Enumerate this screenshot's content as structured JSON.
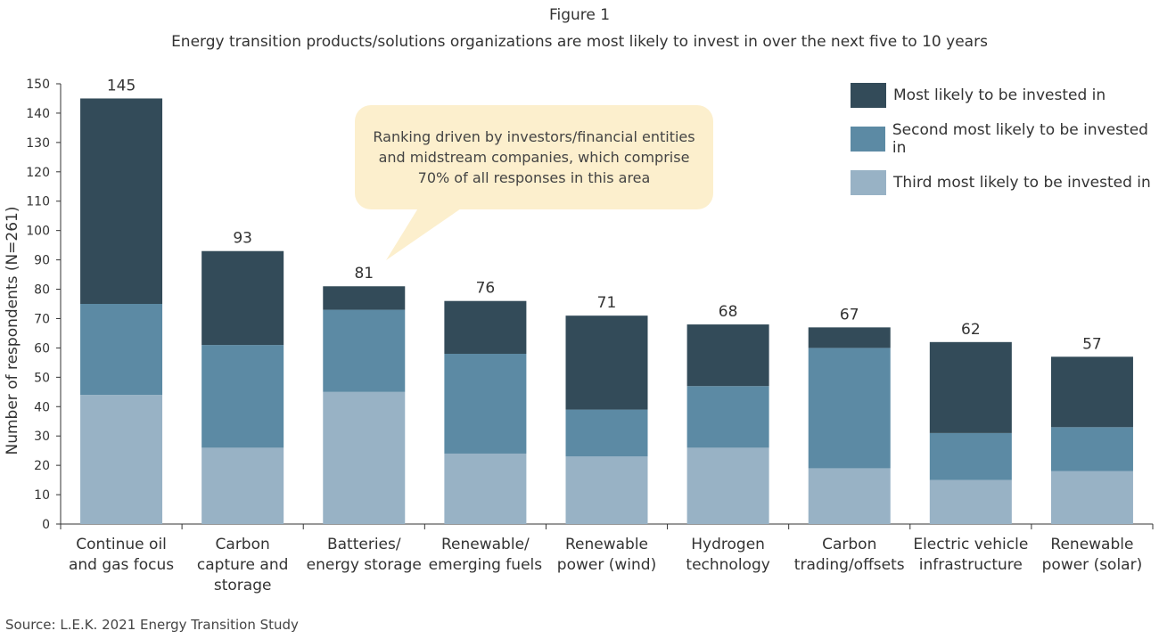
{
  "chart_data": {
    "type": "bar",
    "stacked": true,
    "title": "Figure 1",
    "subtitle": "Energy transition products/solutions organizations are most likely to invest in over the next five to 10 years",
    "xlabel": "",
    "ylabel": "Number of respondents (N=261)",
    "ylim": [
      0,
      150
    ],
    "yticks": [
      0,
      10,
      20,
      30,
      40,
      50,
      60,
      70,
      80,
      90,
      100,
      110,
      120,
      130,
      140,
      150
    ],
    "grid": false,
    "legend_position": "top-right",
    "categories": [
      [
        "Continue oil",
        "and gas focus"
      ],
      [
        "Carbon",
        "capture and",
        "storage"
      ],
      [
        "Batteries/",
        "energy storage"
      ],
      [
        "Renewable/",
        "emerging fuels"
      ],
      [
        "Renewable",
        "power (wind)"
      ],
      [
        "Hydrogen",
        "technology"
      ],
      [
        "Carbon",
        "trading/offsets"
      ],
      [
        "Electric vehicle",
        "infrastructure"
      ],
      [
        "Renewable",
        "power (solar)"
      ]
    ],
    "totals": [
      145,
      93,
      81,
      76,
      71,
      68,
      67,
      62,
      57
    ],
    "series": [
      {
        "name": "Third most likely to be invested in",
        "color": "#98b2c5",
        "values": [
          44,
          26,
          45,
          24,
          23,
          26,
          19,
          15,
          18
        ]
      },
      {
        "name": "Second most likely to be invested in",
        "color": "#5c8aa4",
        "values": [
          31,
          35,
          28,
          34,
          16,
          21,
          41,
          16,
          15
        ]
      },
      {
        "name": "Most likely to be invested in",
        "color": "#334b59",
        "values": [
          70,
          32,
          8,
          18,
          32,
          21,
          7,
          31,
          24
        ]
      }
    ],
    "legend_order": [
      2,
      1,
      0
    ],
    "annotation": "Ranking driven by investors/financial entities and midstream companies, which comprise 70% of all responses in this area",
    "annotation_target": "Batteries/ energy storage"
  },
  "source": "Source: L.E.K. 2021 Energy Transition Study"
}
